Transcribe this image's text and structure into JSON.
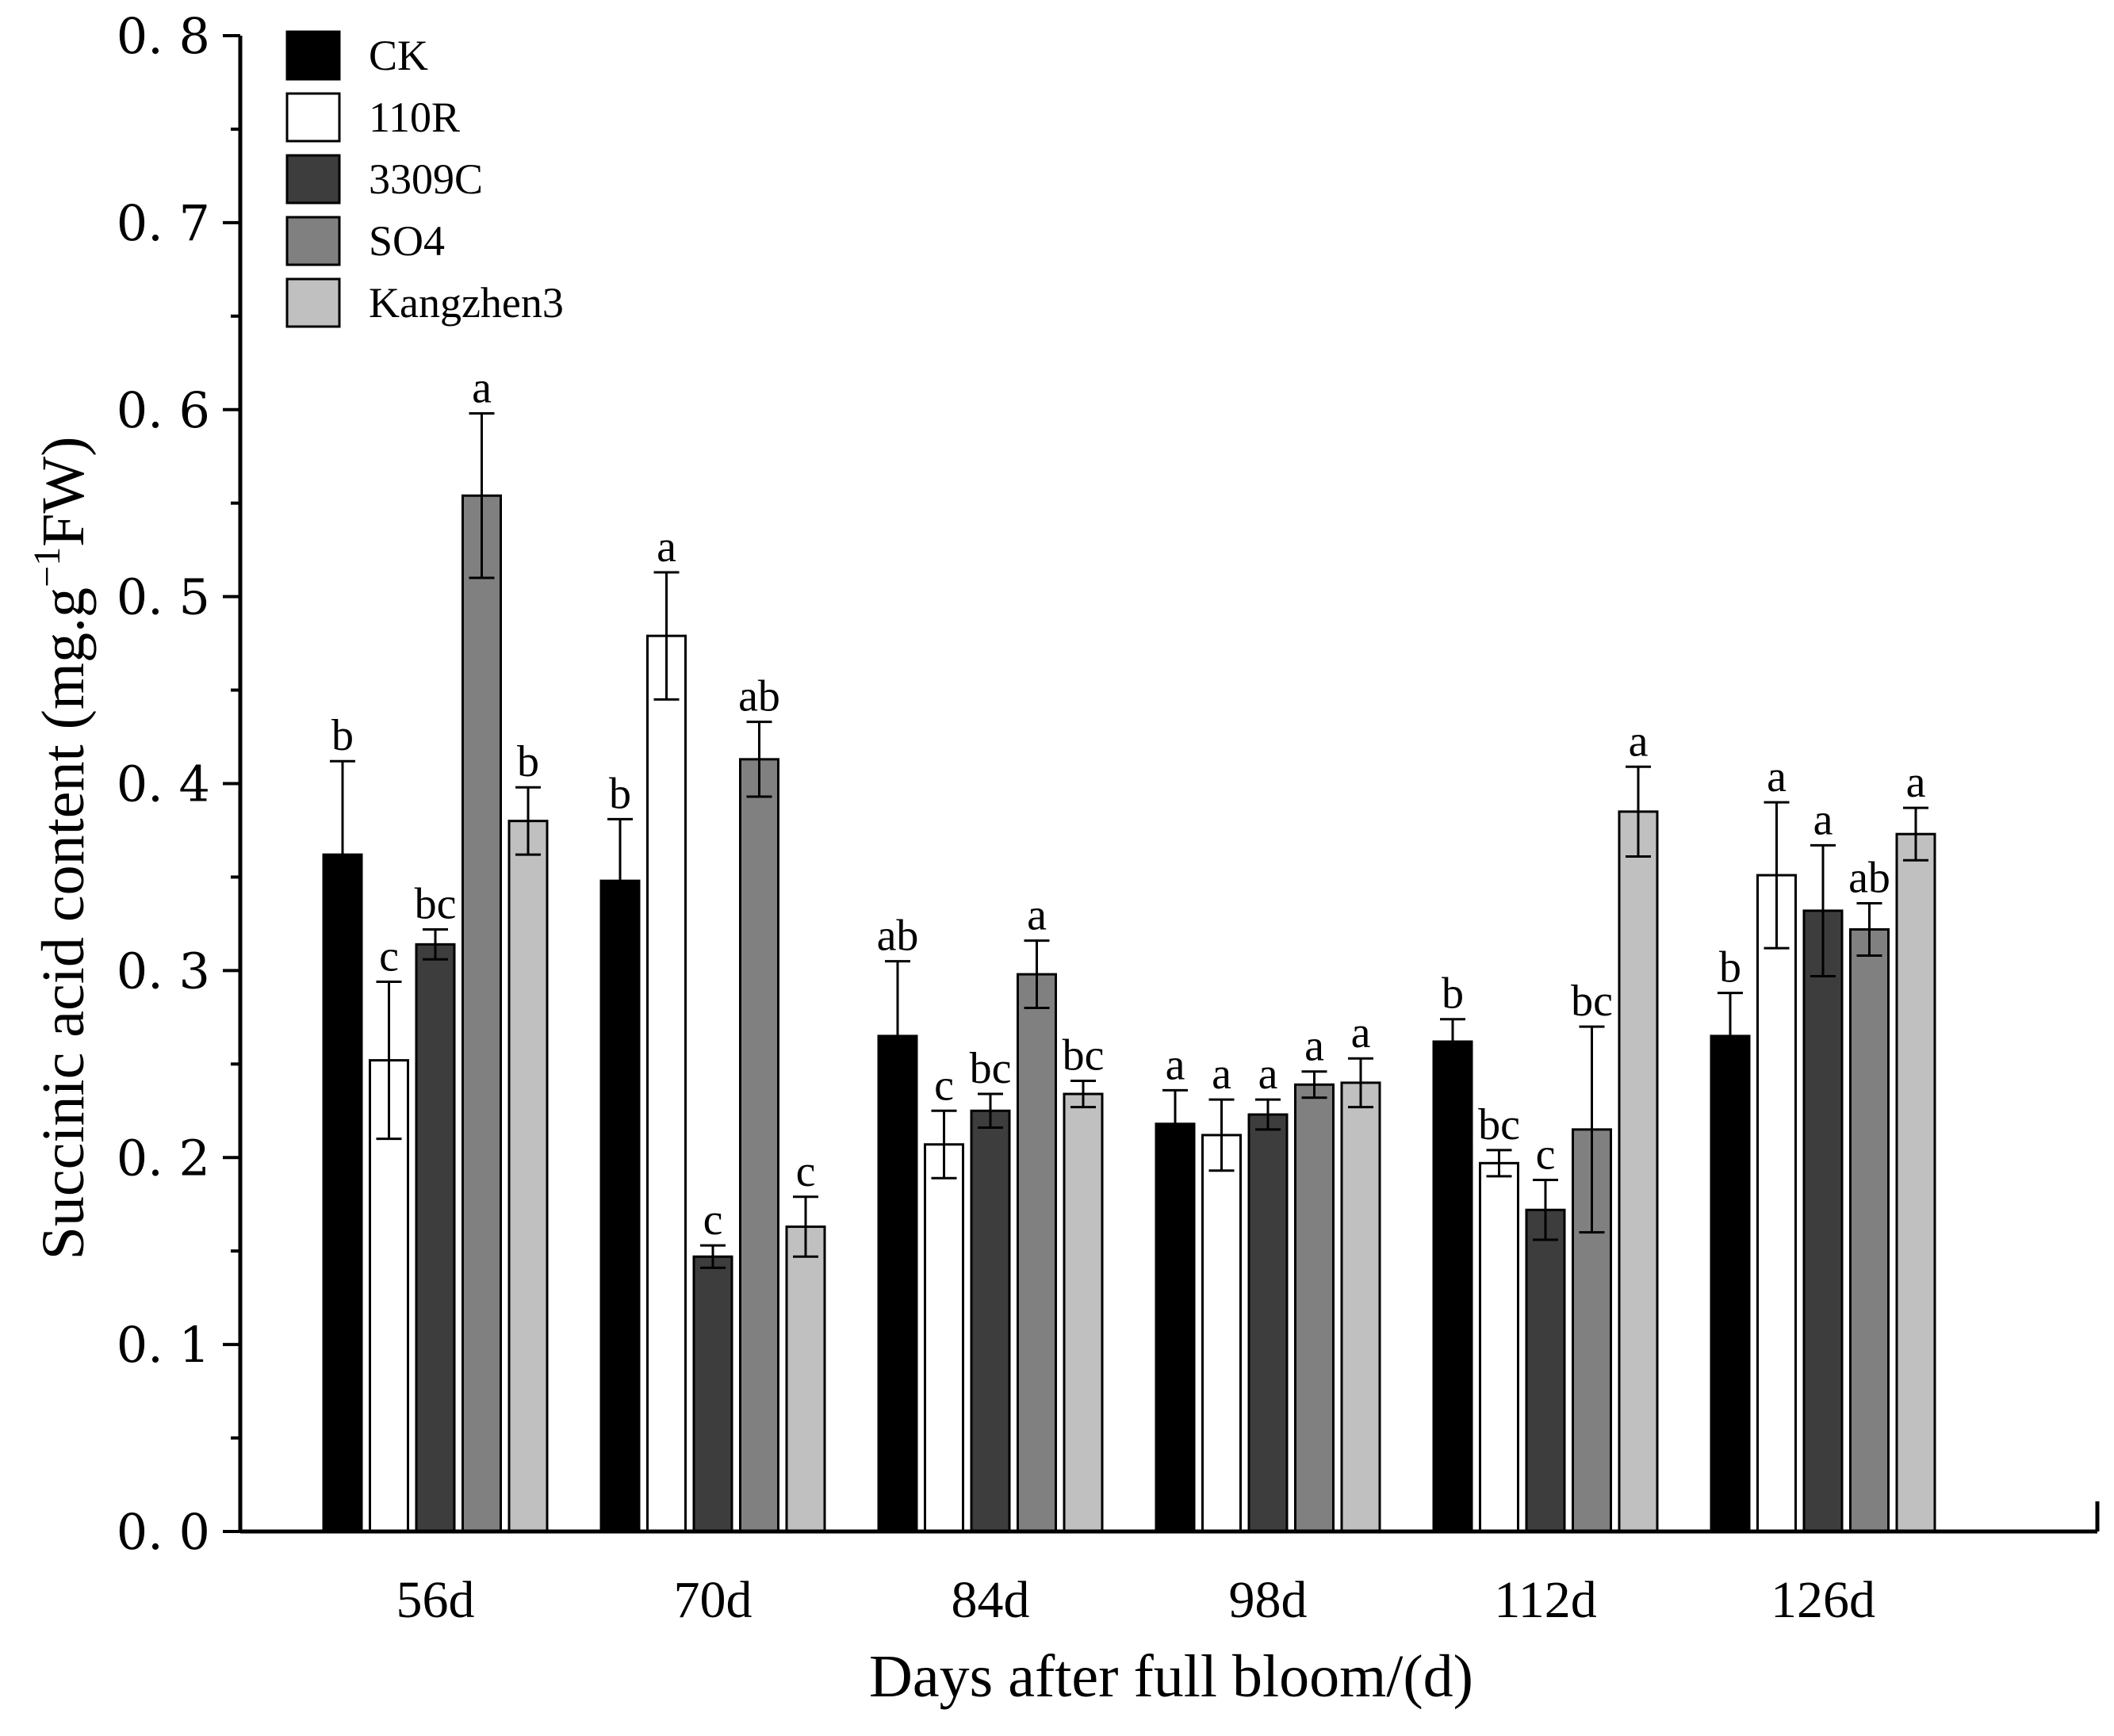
{
  "chart_data": {
    "type": "bar",
    "title": "",
    "xlabel": "Days after full bloom/(d)",
    "ylabel_main": "Succinic acid content (mg.g",
    "ylabel_sup": "−1",
    "ylabel_end": "FW)",
    "ylim": [
      0,
      0.8
    ],
    "yticks": [
      0.0,
      0.1,
      0.2,
      0.3,
      0.4,
      0.5,
      0.6,
      0.7,
      0.8
    ],
    "ytick_labels": [
      "0. 0",
      "0. 1",
      "0. 2",
      "0. 3",
      "0. 4",
      "0. 5",
      "0. 6",
      "0. 7",
      "0. 8"
    ],
    "categories": [
      "56d",
      "70d",
      "84d",
      "98d",
      "112d",
      "126d"
    ],
    "legend_position": "top-left",
    "series": [
      {
        "name": "CK",
        "color": "#000000",
        "values": [
          0.362,
          0.348,
          0.265,
          0.218,
          0.262,
          0.265
        ],
        "errors": [
          0.05,
          0.033,
          0.04,
          0.018,
          0.012,
          0.023
        ],
        "labels": [
          "b",
          "b",
          "ab",
          "a",
          "b",
          "b"
        ]
      },
      {
        "name": "110R",
        "color": "#ffffff",
        "values": [
          0.252,
          0.479,
          0.207,
          0.212,
          0.197,
          0.351
        ],
        "errors": [
          0.042,
          0.034,
          0.018,
          0.019,
          0.007,
          0.039
        ],
        "labels": [
          "c",
          "a",
          "c",
          "a",
          "bc",
          "a"
        ]
      },
      {
        "name": "3309C",
        "color": "#3d3d3d",
        "values": [
          0.314,
          0.147,
          0.225,
          0.223,
          0.172,
          0.332
        ],
        "errors": [
          0.008,
          0.006,
          0.009,
          0.008,
          0.016,
          0.035
        ],
        "labels": [
          "bc",
          "c",
          "bc",
          "a",
          "c",
          "a"
        ]
      },
      {
        "name": "SO4",
        "color": "#808080",
        "values": [
          0.554,
          0.413,
          0.298,
          0.239,
          0.215,
          0.322
        ],
        "errors": [
          0.044,
          0.02,
          0.018,
          0.007,
          0.055,
          0.014
        ],
        "labels": [
          "a",
          "ab",
          "a",
          "a",
          "bc",
          "ab"
        ]
      },
      {
        "name": "Kangzhen3",
        "color": "#c0c0c0",
        "values": [
          0.38,
          0.163,
          0.234,
          0.24,
          0.385,
          0.373
        ],
        "errors": [
          0.018,
          0.016,
          0.007,
          0.013,
          0.024,
          0.014
        ],
        "labels": [
          "b",
          "c",
          "bc",
          "a",
          "a",
          "a"
        ]
      }
    ]
  }
}
